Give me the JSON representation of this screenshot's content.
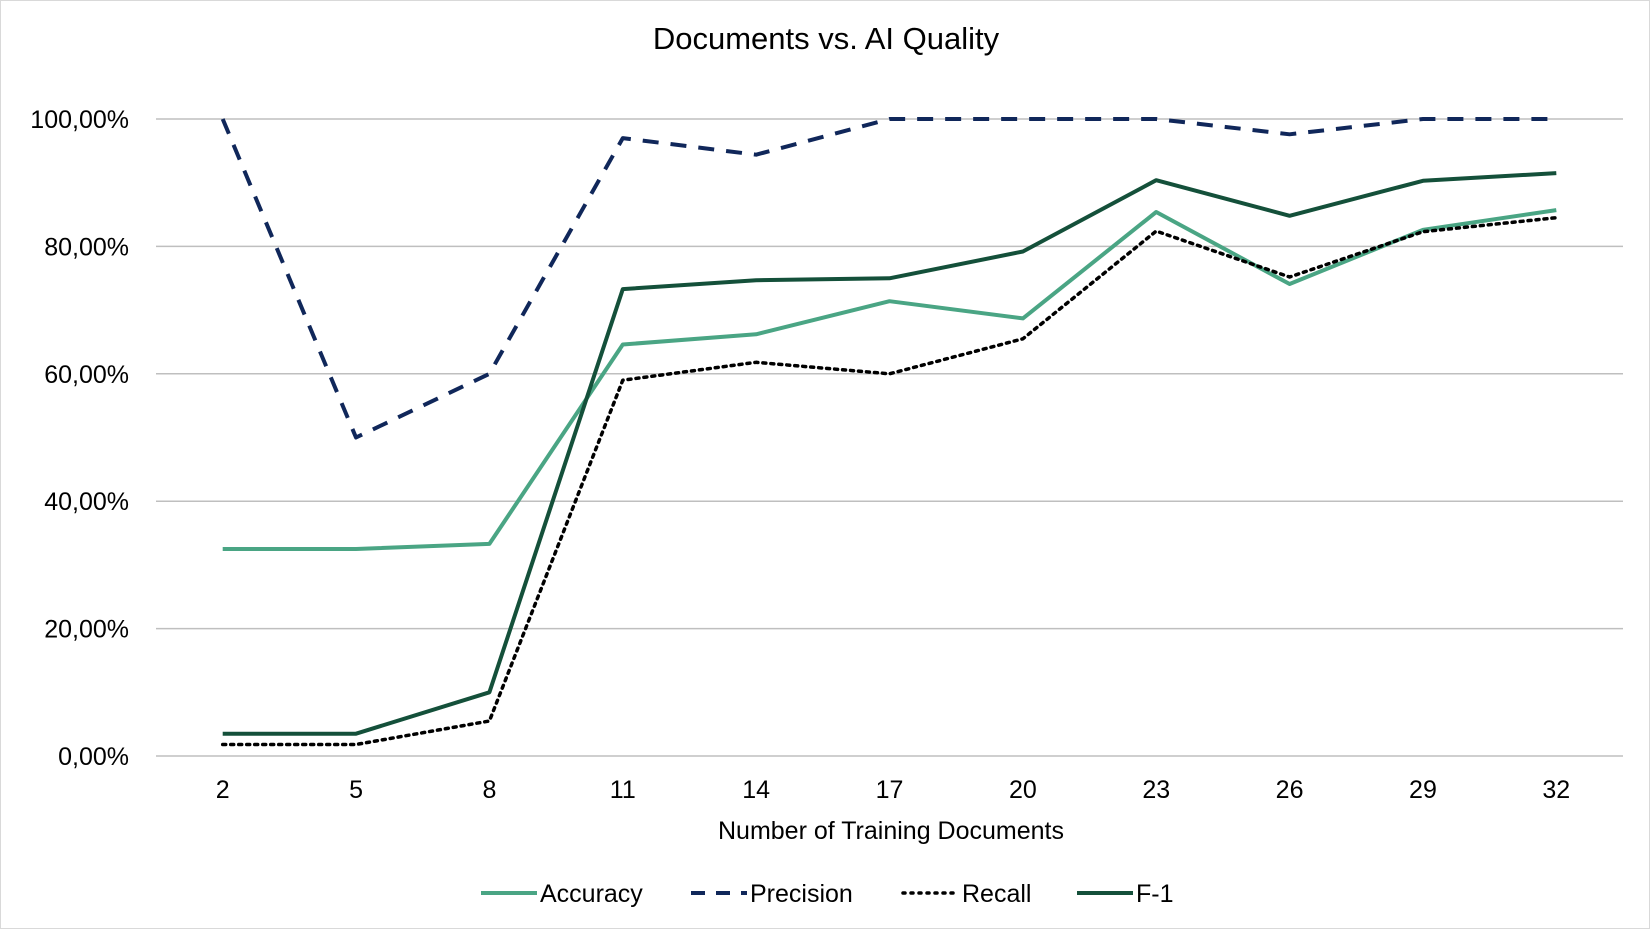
{
  "chart_data": {
    "type": "line",
    "title": "Documents vs. AI Quality",
    "xlabel": "Number of Training Documents",
    "ylabel": "",
    "categories": [
      "2",
      "5",
      "8",
      "11",
      "14",
      "17",
      "20",
      "23",
      "26",
      "29",
      "32"
    ],
    "ylim": [
      0,
      100
    ],
    "yticks": [
      "0,00%",
      "20,00%",
      "40,00%",
      "60,00%",
      "80,00%",
      "100,00%"
    ],
    "grid": true,
    "legend_position": "bottom",
    "series": [
      {
        "name": "Accuracy",
        "color": "#4aa584",
        "dash": "solid",
        "values": [
          32.5,
          32.5,
          33.3,
          64.6,
          66.2,
          71.4,
          68.7,
          85.4,
          74.1,
          82.6,
          85.7
        ]
      },
      {
        "name": "Precision",
        "color": "#10275a",
        "dash": "dashed",
        "values": [
          100,
          50,
          60,
          97,
          94.4,
          100,
          100,
          100,
          97.6,
          100,
          100
        ]
      },
      {
        "name": "Recall",
        "color": "#000000",
        "dash": "dotted",
        "values": [
          1.8,
          1.8,
          5.5,
          59,
          61.8,
          60,
          65.5,
          82.4,
          75.2,
          82.3,
          84.5
        ]
      },
      {
        "name": "F-1",
        "color": "#14503a",
        "dash": "solid",
        "values": [
          3.5,
          3.5,
          10,
          73.3,
          74.7,
          75,
          79.2,
          90.4,
          84.8,
          90.3,
          91.5
        ]
      }
    ]
  }
}
